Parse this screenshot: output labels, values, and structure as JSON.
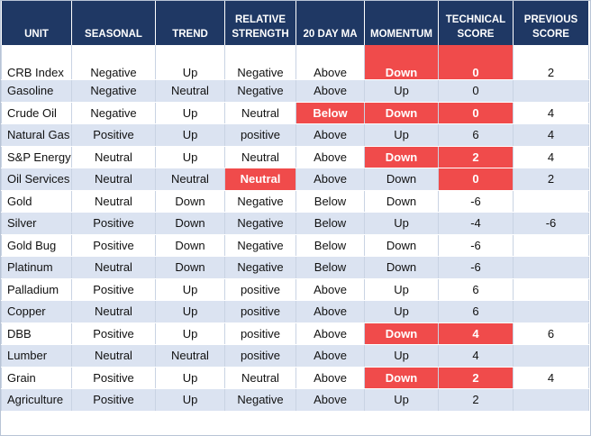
{
  "columns": [
    "UNIT",
    "SEASONAL",
    "TREND",
    "RELATIVE STRENGTH",
    "20 DAY MA",
    "MOMENTUM",
    "TECHNICAL SCORE",
    "PREVIOUS SCORE"
  ],
  "highlight_color": "#f04b4b",
  "header_color": "#1f3864",
  "stripe_color": "#dbe3f1",
  "rows": [
    {
      "cells": [
        "CRB Index",
        "Negative",
        "Up",
        "Negative",
        "Above",
        "Down",
        "0",
        "2"
      ],
      "red": [
        5,
        6
      ]
    },
    {
      "cells": [
        "Gasoline",
        "Negative",
        "Neutral",
        "Negative",
        "Above",
        "Up",
        "0",
        ""
      ],
      "red": []
    },
    {
      "cells": [
        "Crude Oil",
        "Negative",
        "Up",
        "Neutral",
        "Below",
        "Down",
        "0",
        "4"
      ],
      "red": [
        4,
        5,
        6
      ]
    },
    {
      "cells": [
        "Natural Gas",
        "Positive",
        "Up",
        "positive",
        "Above",
        "Up",
        "6",
        "4"
      ],
      "red": []
    },
    {
      "cells": [
        "S&P Energy",
        "Neutral",
        "Up",
        "Neutral",
        "Above",
        "Down",
        "2",
        "4"
      ],
      "red": [
        5,
        6
      ]
    },
    {
      "cells": [
        "Oil Services",
        "Neutral",
        "Neutral",
        "Neutral",
        "Above",
        "Down",
        "0",
        "2"
      ],
      "red": [
        3,
        6
      ]
    },
    {
      "cells": [
        "Gold",
        "Neutral",
        "Down",
        "Negative",
        "Below",
        "Down",
        "-6",
        ""
      ],
      "red": []
    },
    {
      "cells": [
        "Silver",
        "Positive",
        "Down",
        "Negative",
        "Below",
        "Up",
        "-4",
        "-6"
      ],
      "red": []
    },
    {
      "cells": [
        "Gold Bug",
        "Positive",
        "Down",
        "Negative",
        "Below",
        "Down",
        "-6",
        ""
      ],
      "red": []
    },
    {
      "cells": [
        "Platinum",
        "Neutral",
        "Down",
        "Negative",
        "Below",
        "Down",
        "-6",
        ""
      ],
      "red": []
    },
    {
      "cells": [
        "Palladium",
        "Positive",
        "Up",
        "positive",
        "Above",
        "Up",
        "6",
        ""
      ],
      "red": []
    },
    {
      "cells": [
        "Copper",
        "Neutral",
        "Up",
        "positive",
        "Above",
        "Up",
        "6",
        ""
      ],
      "red": []
    },
    {
      "cells": [
        "DBB",
        "Positive",
        "Up",
        "positive",
        "Above",
        "Down",
        "4",
        "6"
      ],
      "red": [
        5,
        6
      ]
    },
    {
      "cells": [
        "Lumber",
        "Neutral",
        "Neutral",
        "positive",
        "Above",
        "Up",
        "4",
        ""
      ],
      "red": []
    },
    {
      "cells": [
        "Grain",
        "Positive",
        "Up",
        "Neutral",
        "Above",
        "Down",
        "2",
        "4"
      ],
      "red": [
        5,
        6
      ]
    },
    {
      "cells": [
        "Agriculture",
        "Positive",
        "Up",
        "Negative",
        "Above",
        "Up",
        "2",
        ""
      ],
      "red": []
    }
  ]
}
